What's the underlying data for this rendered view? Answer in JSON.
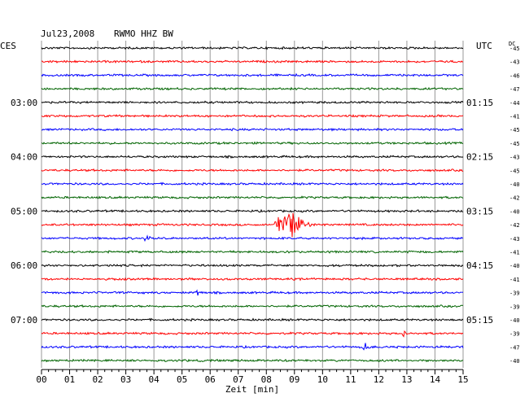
{
  "header": {
    "date": "Jul23,2008",
    "station": "RWMO HHZ BW",
    "left_tz": "CES",
    "right_tz": "UTC",
    "dc_label": "DC"
  },
  "chart_data": {
    "type": "line",
    "title": "Jul23,2008  RWMO HHZ BW",
    "xlabel": "Zeit [min]",
    "x_range": [
      0,
      15
    ],
    "x_ticks": [
      "00",
      "01",
      "02",
      "03",
      "04",
      "05",
      "06",
      "07",
      "08",
      "09",
      "10",
      "11",
      "12",
      "13",
      "14",
      "15"
    ],
    "grid": true,
    "trace_colors": [
      "#000000",
      "#ff0000",
      "#0000ff",
      "#006400"
    ],
    "left_hour_labels": [
      "03:00",
      "04:00",
      "05:00",
      "06:00",
      "07:00"
    ],
    "right_hour_labels": [
      "01:15",
      "02:15",
      "03:15",
      "04:15",
      "05:15"
    ],
    "dc_offsets": [
      "-45",
      "-43",
      "-46",
      "-47",
      "-44",
      "-41",
      "-45",
      "-45",
      "-43",
      "-45",
      "-40",
      "-42",
      "-40",
      "-42",
      "-43",
      "-41",
      "-40",
      "-41",
      "-39",
      "-39",
      "-40",
      "-39",
      "-47",
      "-40"
    ],
    "events": [
      {
        "trace": 13,
        "start_min": 8.3,
        "end_min": 10.5,
        "amplitude": "large"
      },
      {
        "trace": 14,
        "start_min": 3.6,
        "end_min": 4.2,
        "amplitude": "small"
      },
      {
        "trace": 18,
        "start_min": 5.4,
        "end_min": 5.9,
        "amplitude": "small"
      },
      {
        "trace": 21,
        "start_min": 12.8,
        "end_min": 13.1,
        "amplitude": "small"
      },
      {
        "trace": 22,
        "start_min": 11.4,
        "end_min": 11.9,
        "amplitude": "small"
      }
    ]
  }
}
